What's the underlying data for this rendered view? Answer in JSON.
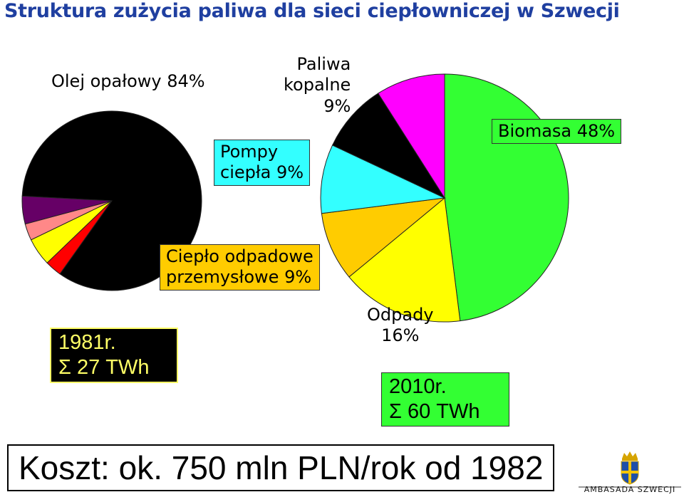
{
  "title": "Struktura zużycia paliwa dla sieci ciepłowniczej w Szwecji",
  "colors": {
    "title": "#1f3fa0",
    "oil": "#000000",
    "biomass": "#33ff33",
    "waste": "#ffff00",
    "industrial_heat": "#ffcc00",
    "heat_pumps": "#33ffff",
    "fossil": "#000000",
    "other_magenta": "#ff00ff",
    "other_red": "#ff0000",
    "other_pink": "#ff8888",
    "other_purple": "#660066",
    "box_1981_bg": "#000000",
    "box_1981_text": "#ffff66",
    "box_2010_bg": "#33ff33"
  },
  "chart_data": [
    {
      "type": "pie",
      "year_caption": "1981r.",
      "total_caption": "Σ  27 TWh",
      "slices": [
        {
          "label": "Olej opałowy 84%",
          "value": 84,
          "color": "#000000"
        },
        {
          "label": "",
          "value": 3,
          "color": "#ff0000"
        },
        {
          "label": "",
          "value": 5,
          "color": "#ffff00"
        },
        {
          "label": "",
          "value": 3,
          "color": "#ff8888"
        },
        {
          "label": "",
          "value": 5,
          "color": "#660066"
        }
      ]
    },
    {
      "type": "pie",
      "year_caption": "2010r.",
      "total_caption": "Σ 60 TWh",
      "slices": [
        {
          "label": "Biomasa 48%",
          "value": 48,
          "color": "#33ff33"
        },
        {
          "label": "Odpady\n16%",
          "value": 16,
          "color": "#ffff00"
        },
        {
          "label": "Ciepło odpadowe\nprzemysłowe 9%",
          "value": 9,
          "color": "#ffcc00"
        },
        {
          "label": "Pompy\nciepła 9%",
          "value": 9,
          "color": "#33ffff"
        },
        {
          "label": "Paliwa\nkopalne\n9%",
          "value": 9,
          "color": "#000000"
        },
        {
          "label": "",
          "value": 9,
          "color": "#ff00ff"
        }
      ]
    }
  ],
  "footer": {
    "cost": "Koszt: ok. 750 mln PLN/rok od 1982",
    "logo_text": "AMBASADA SZWECJI"
  }
}
